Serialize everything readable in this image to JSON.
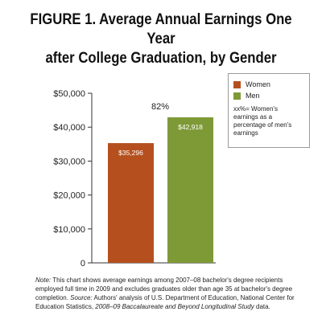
{
  "title_line1": "FIGURE 1. Average Annual Earnings One Year",
  "title_line2": "after College Graduation, by Gender",
  "chart_data": {
    "type": "bar",
    "categories": [
      "Women",
      "Men"
    ],
    "values": [
      35296,
      42918
    ],
    "value_labels": [
      "$35,296",
      "$42,918"
    ],
    "colors": [
      "#b5501e",
      "#7e9a37"
    ],
    "ylim": [
      0,
      50000
    ],
    "yticks": [
      0,
      10000,
      20000,
      30000,
      40000,
      50000
    ],
    "ytick_labels": [
      "0",
      "$10,000",
      "$20,000",
      "$30,000",
      "$40,000",
      "$50,000"
    ],
    "annotation": "82%",
    "grid": false
  },
  "legend": {
    "women_label": "Women",
    "men_label": "Men",
    "note": "xx%= Women's earnings as a percentage of men's earnings"
  },
  "footnote": {
    "note_label": "Note:",
    "note_text": " This chart shows average earnings among 2007–08 bachelor's degree recipients employed full time in 2009 and excludes graduates older than age 35 at bachelor's degree completion.",
    "source_label": "Source:",
    "source_text": " Authors' analysis of U.S. Department of Education, National Center for Education Statistics, ",
    "source_title": "2008–09 Baccalaureate and Beyond Longitudinal Study",
    "source_end": " data."
  }
}
